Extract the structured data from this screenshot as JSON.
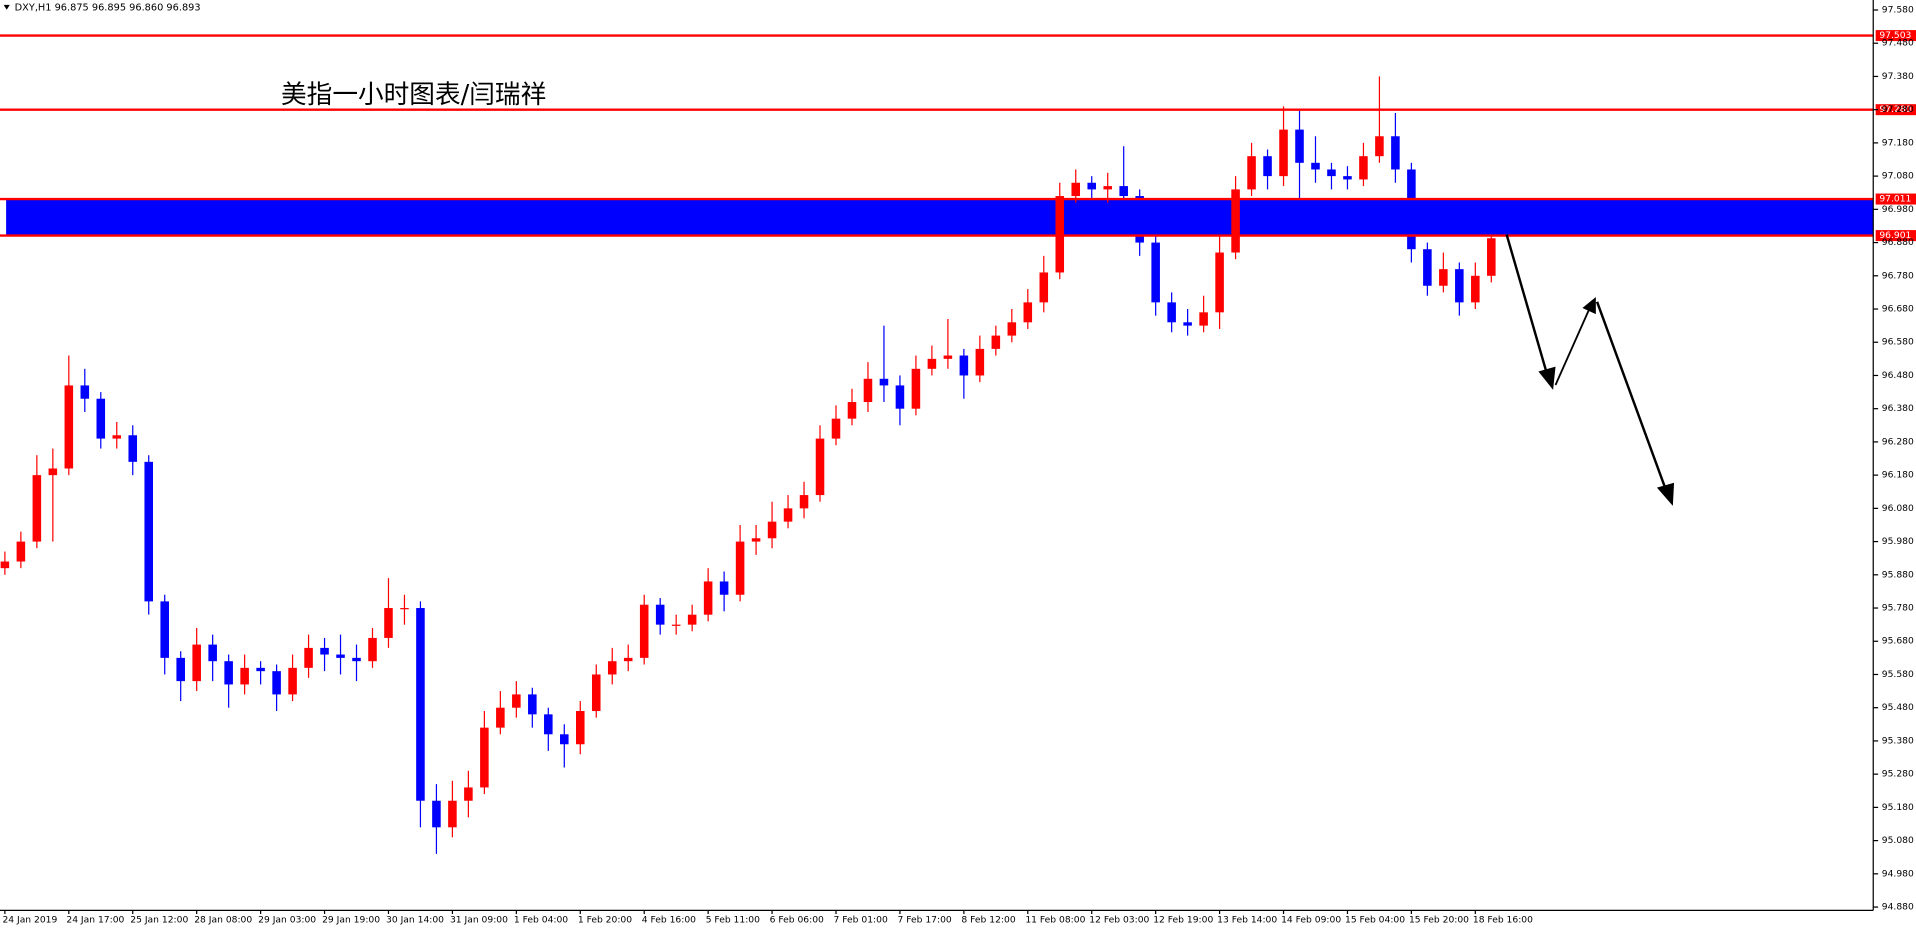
{
  "chart_data": {
    "type": "candlestick",
    "header": "DXY,H1  96.875 96.895 96.860 96.893",
    "title": "美指一小时图表/闫瑞祥",
    "up_color": "#ff0000",
    "down_color": "#0000ff",
    "level_color": "#ff0000",
    "zone_color": "#0000ff",
    "categories": [
      "24 Jan 2019",
      null,
      null,
      null,
      "24 Jan 17:00",
      null,
      null,
      null,
      "25 Jan 12:00",
      null,
      null,
      null,
      "28 Jan 08:00",
      null,
      null,
      null,
      "29 Jan 03:00",
      null,
      null,
      null,
      "29 Jan 19:00",
      null,
      null,
      null,
      "30 Jan 14:00",
      null,
      null,
      null,
      "31 Jan 09:00",
      null,
      null,
      null,
      "1 Feb 04:00",
      null,
      null,
      null,
      "1 Feb 20:00",
      null,
      null,
      null,
      "4 Feb 16:00",
      null,
      null,
      null,
      "5 Feb 11:00",
      null,
      null,
      null,
      "6 Feb 06:00",
      null,
      null,
      null,
      "7 Feb 01:00",
      null,
      null,
      null,
      "7 Feb 17:00",
      null,
      null,
      null,
      "8 Feb 12:00",
      null,
      null,
      null,
      "11 Feb 08:00",
      null,
      null,
      null,
      "12 Feb 03:00",
      null,
      null,
      null,
      "12 Feb 19:00",
      null,
      null,
      null,
      "13 Feb 14:00",
      null,
      null,
      null,
      "14 Feb 09:00",
      null,
      null,
      null,
      "15 Feb 04:00",
      null,
      null,
      null,
      "15 Feb 20:00",
      null,
      null,
      null,
      "18 Feb 16:00",
      null
    ],
    "open": [
      95.9,
      95.92,
      95.98,
      96.18,
      96.2,
      96.45,
      96.41,
      96.29,
      96.3,
      96.22,
      95.8,
      95.63,
      95.56,
      95.67,
      95.62,
      95.55,
      95.6,
      95.59,
      95.52,
      95.6,
      95.66,
      95.64,
      95.63,
      95.62,
      95.69,
      95.78,
      95.78,
      95.2,
      95.12,
      95.2,
      95.24,
      95.42,
      95.48,
      95.52,
      95.46,
      95.4,
      95.37,
      95.47,
      95.58,
      95.62,
      95.63,
      95.79,
      95.73,
      95.73,
      95.76,
      95.86,
      95.82,
      95.98,
      95.99,
      96.04,
      96.08,
      96.12,
      96.29,
      96.35,
      96.4,
      96.47,
      96.45,
      96.38,
      96.5,
      96.53,
      96.54,
      96.48,
      96.56,
      96.6,
      96.64,
      96.7,
      96.79,
      97.02,
      97.06,
      97.04,
      97.05,
      97.02,
      96.88,
      96.7,
      96.64,
      96.63,
      96.67,
      96.85,
      97.04,
      97.14,
      97.08,
      97.22,
      97.12,
      97.1,
      97.08,
      97.07,
      97.14,
      97.2,
      97.1,
      96.86,
      96.75,
      96.8,
      96.7,
      96.78
    ],
    "high": [
      95.95,
      96.01,
      96.24,
      96.26,
      96.54,
      96.5,
      96.43,
      96.34,
      96.33,
      96.24,
      95.82,
      95.65,
      95.72,
      95.7,
      95.64,
      95.64,
      95.62,
      95.61,
      95.64,
      95.7,
      95.69,
      95.7,
      95.67,
      95.72,
      95.87,
      95.82,
      95.8,
      95.25,
      95.26,
      95.29,
      95.47,
      95.53,
      95.56,
      95.54,
      95.48,
      95.43,
      95.5,
      95.61,
      95.66,
      95.67,
      95.82,
      95.81,
      95.76,
      95.79,
      95.9,
      95.89,
      96.03,
      96.03,
      96.1,
      96.12,
      96.16,
      96.33,
      96.39,
      96.44,
      96.52,
      96.63,
      96.48,
      96.54,
      96.57,
      96.65,
      96.56,
      96.6,
      96.63,
      96.68,
      96.74,
      96.84,
      97.06,
      97.1,
      97.08,
      97.09,
      97.17,
      97.04,
      96.9,
      96.73,
      96.68,
      96.72,
      96.9,
      97.08,
      97.18,
      97.16,
      97.29,
      97.28,
      97.2,
      97.12,
      97.11,
      97.18,
      97.38,
      97.27,
      97.12,
      96.88,
      96.85,
      96.82,
      96.82,
      96.9
    ],
    "low": [
      95.88,
      95.9,
      95.96,
      95.98,
      96.18,
      96.37,
      96.26,
      96.26,
      96.18,
      95.76,
      95.58,
      95.5,
      95.53,
      95.56,
      95.48,
      95.52,
      95.55,
      95.47,
      95.5,
      95.57,
      95.59,
      95.58,
      95.56,
      95.6,
      95.66,
      95.73,
      95.12,
      95.04,
      95.09,
      95.15,
      95.22,
      95.4,
      95.45,
      95.42,
      95.35,
      95.3,
      95.34,
      95.45,
      95.55,
      95.59,
      95.61,
      95.7,
      95.7,
      95.71,
      95.74,
      95.77,
      95.8,
      95.94,
      95.96,
      96.02,
      96.05,
      96.1,
      96.27,
      96.33,
      96.37,
      96.4,
      96.33,
      96.36,
      96.48,
      96.5,
      96.41,
      96.46,
      96.54,
      96.58,
      96.62,
      96.67,
      96.77,
      97.0,
      97.0,
      97.0,
      96.96,
      96.84,
      96.66,
      96.61,
      96.6,
      96.61,
      96.62,
      96.83,
      97.02,
      97.04,
      97.05,
      96.98,
      97.06,
      97.04,
      97.04,
      97.05,
      97.12,
      97.06,
      96.82,
      96.72,
      96.73,
      96.66,
      96.68,
      96.76
    ],
    "close": [
      95.92,
      95.98,
      96.18,
      96.2,
      96.45,
      96.41,
      96.29,
      96.3,
      96.22,
      95.8,
      95.63,
      95.56,
      95.67,
      95.62,
      95.55,
      95.6,
      95.59,
      95.52,
      95.6,
      95.66,
      95.64,
      95.63,
      95.62,
      95.69,
      95.78,
      95.78,
      95.2,
      95.12,
      95.2,
      95.24,
      95.42,
      95.48,
      95.52,
      95.46,
      95.4,
      95.37,
      95.47,
      95.58,
      95.62,
      95.63,
      95.79,
      95.73,
      95.73,
      95.76,
      95.86,
      95.82,
      95.98,
      95.99,
      96.04,
      96.08,
      96.12,
      96.29,
      96.35,
      96.4,
      96.47,
      96.45,
      96.38,
      96.5,
      96.53,
      96.54,
      96.48,
      96.56,
      96.6,
      96.64,
      96.7,
      96.79,
      97.02,
      97.06,
      97.04,
      97.05,
      97.02,
      96.88,
      96.7,
      96.64,
      96.63,
      96.67,
      96.85,
      97.04,
      97.14,
      97.08,
      97.22,
      97.12,
      97.1,
      97.08,
      97.07,
      97.14,
      97.2,
      97.1,
      96.86,
      96.75,
      96.8,
      96.7,
      96.78,
      96.893
    ],
    "levels": [
      {
        "value": 97.503,
        "label": "97.503"
      },
      {
        "value": 97.28,
        "label": "97.280"
      },
      {
        "value": 97.011,
        "label": "97.011"
      },
      {
        "value": 96.901,
        "label": "96.901"
      }
    ],
    "zone": [
      2,
      3
    ],
    "ylim": [
      94.87,
      97.61
    ],
    "yticks": [
      {
        "value": 97.58,
        "label": "97.580"
      },
      {
        "value": 97.48,
        "label": "97.480"
      },
      {
        "value": 97.38,
        "label": "97.380"
      },
      {
        "value": 97.28,
        "label": "97.280"
      },
      {
        "value": 97.18,
        "label": "97.180"
      },
      {
        "value": 97.08,
        "label": "97.080"
      },
      {
        "value": 96.98,
        "label": "96.980"
      },
      {
        "value": 96.88,
        "label": "96.880"
      },
      {
        "value": 96.78,
        "label": "96.780"
      },
      {
        "value": 96.68,
        "label": "96.680"
      },
      {
        "value": 96.58,
        "label": "96.580"
      },
      {
        "value": 96.48,
        "label": "96.480"
      },
      {
        "value": 96.38,
        "label": "96.380"
      },
      {
        "value": 96.28,
        "label": "96.280"
      },
      {
        "value": 96.18,
        "label": "96.180"
      },
      {
        "value": 96.08,
        "label": "96.080"
      },
      {
        "value": 95.98,
        "label": "95.980"
      },
      {
        "value": 95.88,
        "label": "95.880"
      },
      {
        "value": 95.78,
        "label": "95.780"
      },
      {
        "value": 95.68,
        "label": "95.680"
      },
      {
        "value": 95.58,
        "label": "95.580"
      },
      {
        "value": 95.48,
        "label": "95.480"
      },
      {
        "value": 95.38,
        "label": "95.380"
      },
      {
        "value": 95.28,
        "label": "95.280"
      },
      {
        "value": 95.18,
        "label": "95.180"
      },
      {
        "value": 95.08,
        "label": "95.080"
      },
      {
        "value": 94.98,
        "label": "94.980"
      },
      {
        "value": 94.88,
        "label": "94.880"
      }
    ],
    "grid": false
  }
}
